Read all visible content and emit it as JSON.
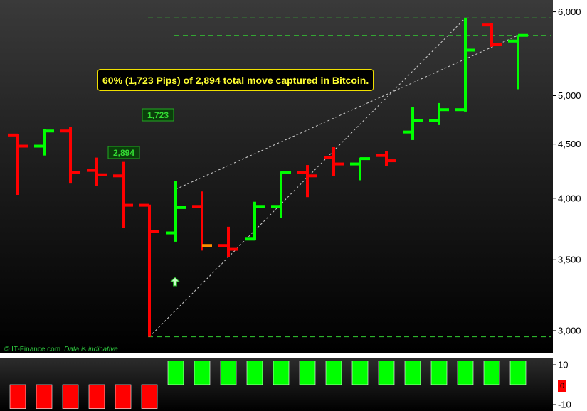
{
  "annotation": {
    "text": "60% (1,723 Pips) of 2,894 total move captured in Bitcoin."
  },
  "labels": {
    "move_total": "2,894",
    "move_captured": "1,723"
  },
  "credit": {
    "source": "© IT-Finance.com",
    "note": "Data is indicative"
  },
  "colors": {
    "up": "#00ff00",
    "down": "#ff0000",
    "signal": "#ff8c00",
    "guide": "#33cc33",
    "annotation": "#ffff33"
  },
  "icons": {
    "entry_signal": "up-arrow-icon"
  },
  "chart_data": {
    "type": "ohlc",
    "scale": "log",
    "ylim": [
      2940,
      6080
    ],
    "yticks": [
      {
        "value": 3000,
        "label": "3,000"
      },
      {
        "value": 3500,
        "label": "3,500"
      },
      {
        "value": 4000,
        "label": "4,000"
      },
      {
        "value": 4500,
        "label": "4,500"
      },
      {
        "value": 5000,
        "label": "5,000"
      },
      {
        "value": 6000,
        "label": "6,000"
      }
    ],
    "bars": [
      {
        "o": 4590,
        "h": 4600,
        "l": 4030,
        "c": 4480,
        "dir": "down"
      },
      {
        "o": 4480,
        "h": 4650,
        "l": 4390,
        "c": 4630,
        "dir": "up"
      },
      {
        "o": 4630,
        "h": 4670,
        "l": 4130,
        "c": 4230,
        "dir": "down"
      },
      {
        "o": 4250,
        "h": 4370,
        "l": 4110,
        "c": 4210,
        "dir": "down"
      },
      {
        "o": 4200,
        "h": 4330,
        "l": 3750,
        "c": 3940,
        "dir": "down"
      },
      {
        "o": 3940,
        "h": 3945,
        "l": 2960,
        "c": 3720,
        "dir": "down"
      },
      {
        "o": 3710,
        "h": 4150,
        "l": 3640,
        "c": 3920,
        "dir": "up"
      },
      {
        "o": 3930,
        "h": 4060,
        "l": 3570,
        "c": 3610,
        "dir": "down"
      },
      {
        "o": 3610,
        "h": 3760,
        "l": 3520,
        "c": 3580,
        "dir": "down"
      },
      {
        "o": 3660,
        "h": 3970,
        "l": 3650,
        "c": 3930,
        "dir": "up"
      },
      {
        "o": 3930,
        "h": 4240,
        "l": 3830,
        "c": 4230,
        "dir": "up"
      },
      {
        "o": 4230,
        "h": 4300,
        "l": 4010,
        "c": 4200,
        "dir": "down"
      },
      {
        "o": 4370,
        "h": 4470,
        "l": 4200,
        "c": 4310,
        "dir": "down"
      },
      {
        "o": 4310,
        "h": 4370,
        "l": 4160,
        "c": 4360,
        "dir": "up"
      },
      {
        "o": 4390,
        "h": 4430,
        "l": 4290,
        "c": 4340,
        "dir": "down"
      },
      {
        "o": 4620,
        "h": 4880,
        "l": 4540,
        "c": 4740,
        "dir": "up"
      },
      {
        "o": 4740,
        "h": 4920,
        "l": 4690,
        "c": 4850,
        "dir": "up"
      },
      {
        "o": 4850,
        "h": 5920,
        "l": 4830,
        "c": 5520,
        "dir": "up"
      },
      {
        "o": 5830,
        "h": 5850,
        "l": 5560,
        "c": 5590,
        "dir": "down"
      },
      {
        "o": 5630,
        "h": 5700,
        "l": 5070,
        "c": 5700,
        "dir": "up"
      }
    ],
    "signal_close_index": 7,
    "entry_signal_index": 6,
    "guides": [
      {
        "level": 5920,
        "from": 5
      },
      {
        "level": 5700,
        "from": 6
      },
      {
        "level": 3935,
        "from": 6
      },
      {
        "level": 2960,
        "from": 5
      }
    ],
    "trendlines": [
      {
        "from": {
          "i": 5,
          "v": 2960
        },
        "to": {
          "i": 17,
          "v": 5920
        }
      },
      {
        "from": {
          "i": 6,
          "v": 4080
        },
        "to": {
          "i": 19,
          "v": 5700
        }
      }
    ],
    "oscillator": {
      "values": [
        -12,
        -12,
        -12,
        -12,
        -12,
        -12,
        12,
        12,
        12,
        12,
        12,
        12,
        12,
        12,
        12,
        12,
        12,
        12,
        12,
        12
      ],
      "yticks": [
        "10",
        "-10"
      ],
      "current": "0"
    }
  }
}
